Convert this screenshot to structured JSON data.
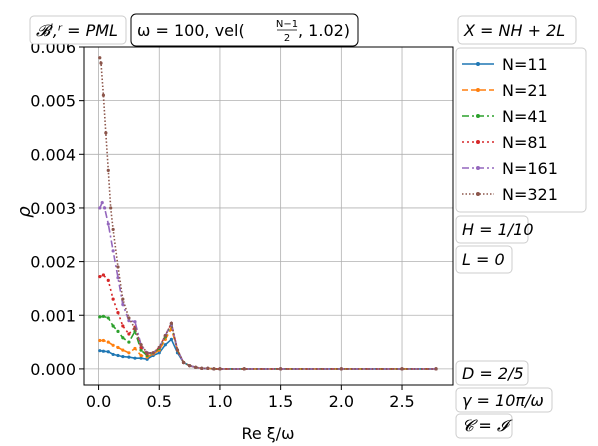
{
  "chart_data": {
    "type": "line",
    "title": "ω = 100, vel((N−1)/2, 1.02)",
    "xlabel": "Re ξ/ω",
    "ylabel": "ρ",
    "xlim": [
      -0.12,
      2.92
    ],
    "ylim": [
      -0.0003,
      0.006
    ],
    "grid": true,
    "legend_position": "right, outside plot",
    "x_ticks": [
      0.0,
      0.5,
      1.0,
      1.5,
      2.0,
      2.5
    ],
    "x_tick_labels": [
      "0.0",
      "0.5",
      "1.0",
      "1.5",
      "2.0",
      "2.5"
    ],
    "y_ticks": [
      0.0,
      0.001,
      0.002,
      0.003,
      0.004,
      0.005,
      0.006
    ],
    "y_tick_labels": [
      "0.000",
      "0.001",
      "0.002",
      "0.003",
      "0.004",
      "0.005",
      "0.006"
    ],
    "series": [
      {
        "name": "N=11",
        "color": "#1f77b4",
        "dash": "solid",
        "marker": "point",
        "x": [
          0.01,
          0.04,
          0.08,
          0.12,
          0.16,
          0.2,
          0.25,
          0.3,
          0.35,
          0.4,
          0.45,
          0.5,
          0.55,
          0.6,
          0.65,
          0.7,
          0.75,
          0.8,
          0.85,
          0.9,
          0.95,
          1.0,
          1.2,
          1.5,
          2.0,
          2.5,
          2.78
        ],
        "y": [
          0.00034,
          0.00033,
          0.00032,
          0.00027,
          0.00025,
          0.00023,
          0.00022,
          0.0002,
          0.0002,
          0.00018,
          0.00025,
          0.0003,
          0.00045,
          0.00055,
          0.0003,
          0.00012,
          6e-05,
          3e-05,
          1e-05,
          1e-05,
          0.0,
          0.0,
          0.0,
          0.0,
          0.0,
          0.0,
          0.0
        ]
      },
      {
        "name": "N=21",
        "color": "#ff7f0e",
        "dash": "dashed",
        "marker": "point",
        "x": [
          0.01,
          0.04,
          0.08,
          0.12,
          0.16,
          0.2,
          0.25,
          0.3,
          0.35,
          0.4,
          0.45,
          0.5,
          0.55,
          0.6,
          0.65,
          0.7,
          0.75,
          0.8,
          0.85,
          0.9,
          0.95,
          1.0,
          1.2,
          1.5,
          2.0,
          2.5,
          2.78
        ],
        "y": [
          0.00053,
          0.00053,
          0.0005,
          0.00044,
          0.0004,
          0.00035,
          0.0003,
          0.00038,
          0.00025,
          0.00022,
          0.00028,
          0.00035,
          0.00055,
          0.00075,
          0.00035,
          0.00012,
          6e-05,
          3e-05,
          1e-05,
          1e-05,
          0.0,
          0.0,
          0.0,
          0.0,
          0.0,
          0.0,
          0.0
        ]
      },
      {
        "name": "N=41",
        "color": "#2ca02c",
        "dash": "dashdot",
        "marker": "point",
        "x": [
          0.01,
          0.04,
          0.08,
          0.12,
          0.16,
          0.2,
          0.25,
          0.3,
          0.35,
          0.4,
          0.45,
          0.5,
          0.55,
          0.6,
          0.65,
          0.7,
          0.75,
          0.8,
          0.85,
          0.9,
          0.95,
          1.0,
          1.2,
          1.5,
          2.0,
          2.5,
          2.78
        ],
        "y": [
          0.00097,
          0.00098,
          0.00095,
          0.0008,
          0.0007,
          0.00058,
          0.0005,
          0.0007,
          0.00035,
          0.00025,
          0.0003,
          0.00038,
          0.0006,
          0.00082,
          0.00035,
          0.00012,
          6e-05,
          3e-05,
          1e-05,
          1e-05,
          0.0,
          0.0,
          0.0,
          0.0,
          0.0,
          0.0,
          0.0
        ]
      },
      {
        "name": "N=81",
        "color": "#d62728",
        "dash": "dotted",
        "marker": "point",
        "x": [
          0.01,
          0.04,
          0.08,
          0.12,
          0.16,
          0.2,
          0.25,
          0.3,
          0.35,
          0.4,
          0.45,
          0.5,
          0.55,
          0.6,
          0.65,
          0.7,
          0.75,
          0.8,
          0.85,
          0.9,
          0.95,
          1.0,
          1.2,
          1.5,
          2.0,
          2.5,
          2.78
        ],
        "y": [
          0.00172,
          0.00175,
          0.00165,
          0.0013,
          0.00105,
          0.0008,
          0.00065,
          0.00078,
          0.0004,
          0.00028,
          0.0003,
          0.0004,
          0.00062,
          0.00085,
          0.00035,
          0.00012,
          6e-05,
          3e-05,
          1e-05,
          1e-05,
          0.0,
          0.0,
          0.0,
          0.0,
          0.0,
          0.0,
          0.0
        ]
      },
      {
        "name": "N=161",
        "color": "#9467bd",
        "dash": "dashdot",
        "marker": "point",
        "x": [
          0.01,
          0.03,
          0.05,
          0.08,
          0.12,
          0.16,
          0.2,
          0.25,
          0.3,
          0.35,
          0.4,
          0.45,
          0.5,
          0.55,
          0.6,
          0.65,
          0.7,
          0.75,
          0.8,
          0.85,
          0.9,
          0.95,
          1.0,
          1.2,
          1.5,
          2.0,
          2.5,
          2.78
        ],
        "y": [
          0.003,
          0.0031,
          0.003,
          0.0027,
          0.0022,
          0.0017,
          0.0012,
          0.0009,
          0.00088,
          0.00045,
          0.0003,
          0.0003,
          0.0004,
          0.00062,
          0.00085,
          0.00035,
          0.00012,
          6e-05,
          3e-05,
          1e-05,
          1e-05,
          0.0,
          0.0,
          0.0,
          0.0,
          0.0,
          0.0,
          0.0
        ]
      },
      {
        "name": "N=321",
        "color": "#8c564b",
        "dash": "densely-dotted",
        "marker": "point",
        "x": [
          0.01,
          0.02,
          0.04,
          0.06,
          0.08,
          0.1,
          0.12,
          0.16,
          0.2,
          0.25,
          0.3,
          0.35,
          0.4,
          0.45,
          0.5,
          0.55,
          0.6,
          0.65,
          0.7,
          0.75,
          0.8,
          0.85,
          0.9,
          0.95,
          1.0,
          1.2,
          1.5,
          2.0,
          2.5,
          2.78
        ],
        "y": [
          0.0058,
          0.0057,
          0.0051,
          0.0044,
          0.0037,
          0.003,
          0.0026,
          0.0019,
          0.0013,
          0.00095,
          0.00075,
          0.00045,
          0.0003,
          0.0003,
          0.0004,
          0.00062,
          0.00085,
          0.00035,
          0.00012,
          6e-05,
          3e-05,
          1e-05,
          1e-05,
          0.0,
          0.0,
          0.0,
          0.0,
          0.0,
          0.0,
          0.0
        ]
      }
    ]
  },
  "annotations": {
    "top_left": "𝓑ˡ,ʳ = PML",
    "top_center": "ω = 100, vel(",
    "top_center_frac_num": "N−1",
    "top_center_frac_den": "2",
    "top_center_tail": ", 1.02)",
    "right_top": "X = NH + 2L",
    "right_h": "H = 1/10",
    "right_l": "L = 0",
    "right_d": "D = 2/5",
    "right_gamma": "γ = 10π/ω",
    "right_c": "𝓒 = 𝓘"
  }
}
